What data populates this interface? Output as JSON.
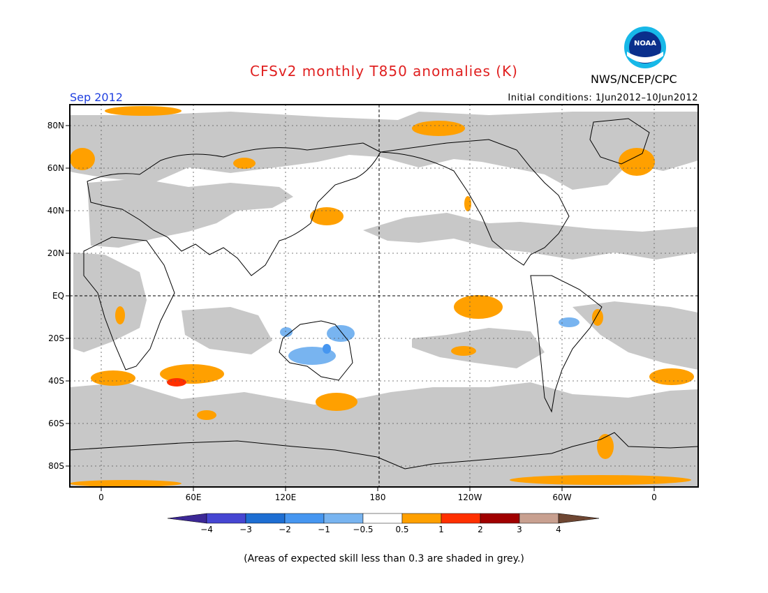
{
  "header": {
    "title": "CFSv2 monthly T850 anomalies (K)",
    "agency": "NWS/NCEP/CPC",
    "logo_text": "NOAA",
    "month": "Sep 2012",
    "initial_conditions": "Initial conditions: 1Jun2012–10Jun2012"
  },
  "map": {
    "lat_labels": [
      "80N",
      "60N",
      "40N",
      "20N",
      "EQ",
      "20S",
      "40S",
      "60S",
      "80S"
    ],
    "lat_values": [
      80,
      60,
      40,
      20,
      0,
      -20,
      -40,
      -60,
      -80
    ],
    "lon_labels": [
      "0",
      "60E",
      "120E",
      "180",
      "120W",
      "60W",
      "0"
    ],
    "lon_values": [
      0,
      60,
      120,
      180,
      240,
      300,
      360
    ],
    "colors": {
      "low_skill_grey": "#c8c8c8",
      "warm_0_5_1": "#ffa000",
      "warm_1_2": "#ff3000",
      "cool_neg1_neg0_5": "#78b4f0",
      "cool_neg2_neg1": "#4696f0"
    }
  },
  "colorbar": {
    "tick_labels": [
      "−4",
      "−3",
      "−2",
      "−1",
      "−0.5",
      "0.5",
      "1",
      "2",
      "3",
      "4"
    ],
    "colors": [
      "#3c2896",
      "#4646d2",
      "#1e6ed2",
      "#4696f0",
      "#78b4f0",
      "#ffffff",
      "#ffa000",
      "#ff3000",
      "#a00000",
      "#c8a090",
      "#6e4632"
    ]
  },
  "footnote": "(Areas of expected skill less than 0.3 are shaded in grey.)"
}
